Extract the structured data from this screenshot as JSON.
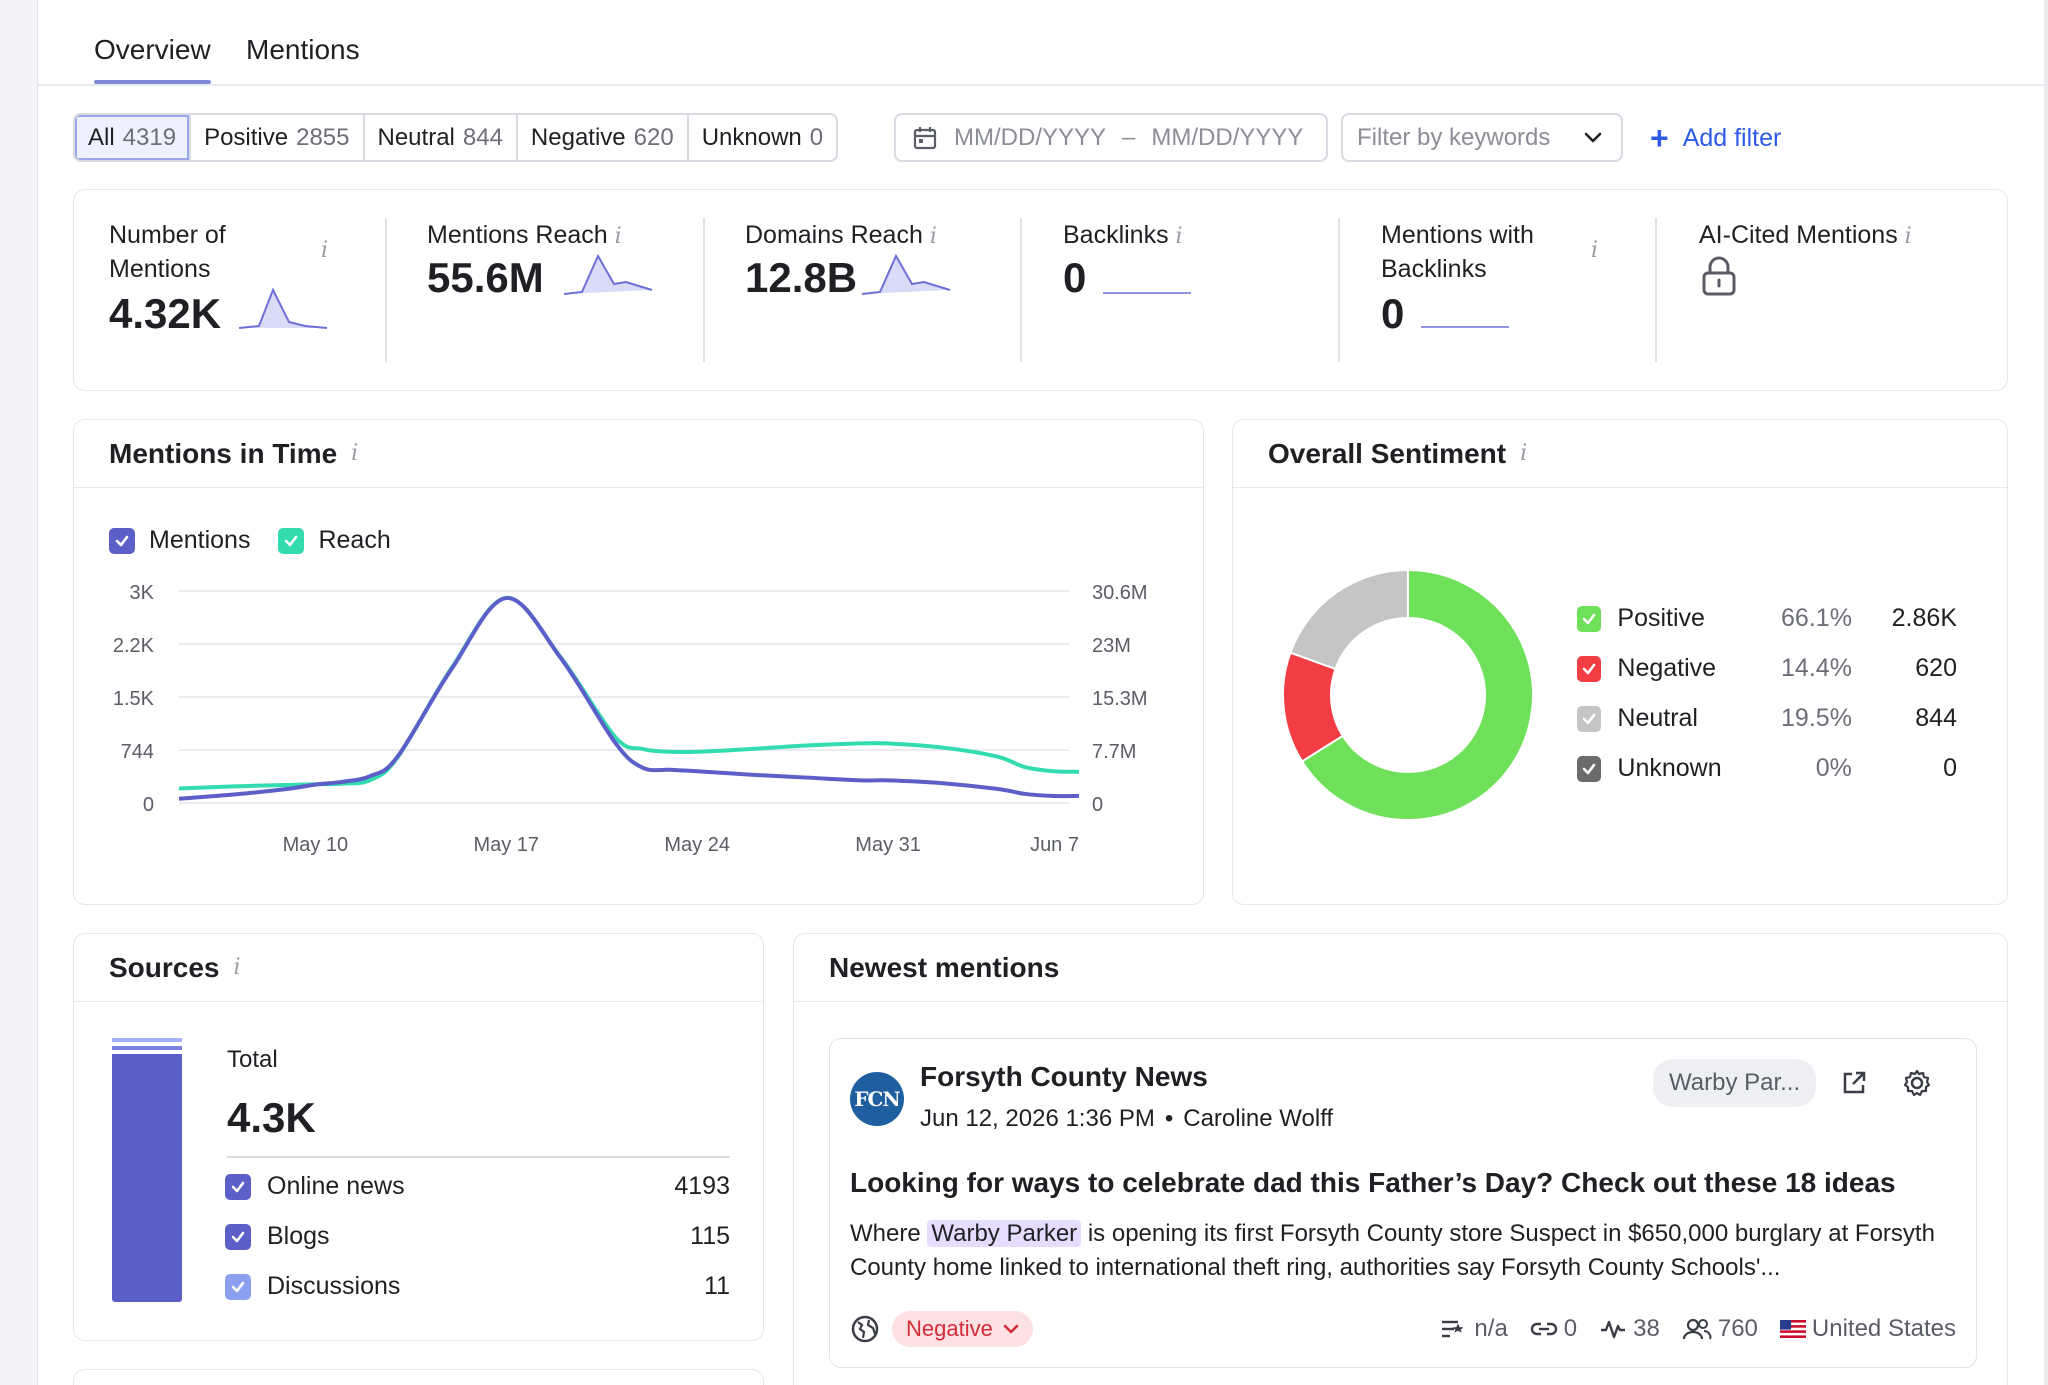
{
  "tabs": [
    {
      "label": "Overview"
    },
    {
      "label": "Mentions"
    }
  ],
  "sentiment_filter": [
    {
      "label": "All",
      "count": "4319"
    },
    {
      "label": "Positive",
      "count": "2855"
    },
    {
      "label": "Neutral",
      "count": "844"
    },
    {
      "label": "Negative",
      "count": "620"
    },
    {
      "label": "Unknown",
      "count": "0"
    }
  ],
  "date_range": {
    "from_placeholder": "MM/DD/YYYY",
    "separator": "–",
    "to_placeholder": "MM/DD/YYYY"
  },
  "keyword_filter": {
    "placeholder": "Filter by keywords"
  },
  "add_filter": {
    "icon": "+",
    "label": "Add filter"
  },
  "metrics": [
    {
      "label": "Number of Mentions",
      "value": "4.32K"
    },
    {
      "label": "Mentions Reach",
      "value": "55.6M"
    },
    {
      "label": "Domains Reach",
      "value": "12.8B"
    },
    {
      "label": "Backlinks",
      "value": "0"
    },
    {
      "label": "Mentions with Backlinks",
      "value": "0"
    },
    {
      "label": "AI-Cited Mentions",
      "value": ""
    }
  ],
  "info_glyph": "i",
  "mentions_in_time": {
    "title": "Mentions in Time",
    "legend": [
      "Mentions",
      "Reach"
    ]
  },
  "chart_data": {
    "type": "line",
    "x": [
      "May 10",
      "May 17",
      "May 24",
      "May 31",
      "Jun 7"
    ],
    "y_left_ticks": [
      "3K",
      "2.2K",
      "1.5K",
      "744",
      "0"
    ],
    "y_right_ticks": [
      "30.6M",
      "23M",
      "15.3M",
      "7.7M",
      "0"
    ],
    "ylim": [
      0,
      3000
    ],
    "y2lim": [
      0,
      30600000
    ],
    "grid": true,
    "series": [
      {
        "name": "Mentions",
        "color": "#5d5fc8",
        "x": [
          5,
          7,
          9,
          10,
          11,
          12,
          13,
          15,
          17,
          19,
          21,
          22,
          23,
          24,
          26,
          28,
          30,
          31,
          33,
          35,
          36,
          37,
          38
        ],
        "values": [
          60,
          120,
          200,
          260,
          300,
          380,
          650,
          1900,
          2900,
          2050,
          850,
          500,
          470,
          450,
          400,
          360,
          320,
          320,
          280,
          200,
          130,
          100,
          100
        ]
      },
      {
        "name": "Reach",
        "color": "#33dbb0",
        "x": [
          5,
          7,
          9,
          10,
          11,
          12,
          13,
          15,
          17,
          19,
          21,
          22,
          23,
          24,
          26,
          28,
          30,
          31,
          33,
          35,
          36,
          37,
          38
        ],
        "values": [
          2100000,
          2400000,
          2600000,
          2700000,
          2800000,
          3300000,
          6500000,
          19500000,
          29600000,
          21000000,
          9500000,
          7800000,
          7400000,
          7400000,
          7800000,
          8300000,
          8600000,
          8600000,
          8000000,
          6700000,
          5200000,
          4600000,
          4500000
        ]
      }
    ]
  },
  "overall_sentiment": {
    "title": "Overall Sentiment",
    "items": [
      {
        "name": "Positive",
        "pct": "66.1%",
        "count": "2.86K",
        "value": 66.1,
        "color": "#6fe05a"
      },
      {
        "name": "Negative",
        "pct": "14.4%",
        "count": "620",
        "value": 14.4,
        "color": "#f23d44"
      },
      {
        "name": "Neutral",
        "pct": "19.5%",
        "count": "844",
        "value": 19.5,
        "color": "#c5c5c5"
      },
      {
        "name": "Unknown",
        "pct": "0%",
        "count": "0",
        "value": 0,
        "color": "#6b6b6b"
      }
    ]
  },
  "sources": {
    "title": "Sources",
    "total_label": "Total",
    "total_value": "4.3K",
    "items": [
      {
        "name": "Online news",
        "count": "4193"
      },
      {
        "name": "Blogs",
        "count": "115"
      },
      {
        "name": "Discussions",
        "count": "11"
      }
    ]
  },
  "newest_mentions": {
    "title": "Newest mentions",
    "item": {
      "logo_text": "FCN",
      "source": "Forsyth County News",
      "date": "Jun 12, 2026 1:36 PM",
      "bullet": "•",
      "author": "Caroline Wolff",
      "tag": "Warby Par...",
      "headline": "Looking for ways to celebrate dad this Father’s Day? Check out these 18 ideas",
      "snippet_before": "Where",
      "snippet_highlight": "Warby Parker",
      "snippet_after": "is opening its first Forsyth County store Suspect in $650,000 burglary at Forsyth County home linked to international theft ring, authorities say Forsyth County Schools'...",
      "sentiment": "Negative",
      "rank": "n/a",
      "links": "0",
      "activity": "38",
      "audience": "760",
      "country": "United States"
    }
  }
}
